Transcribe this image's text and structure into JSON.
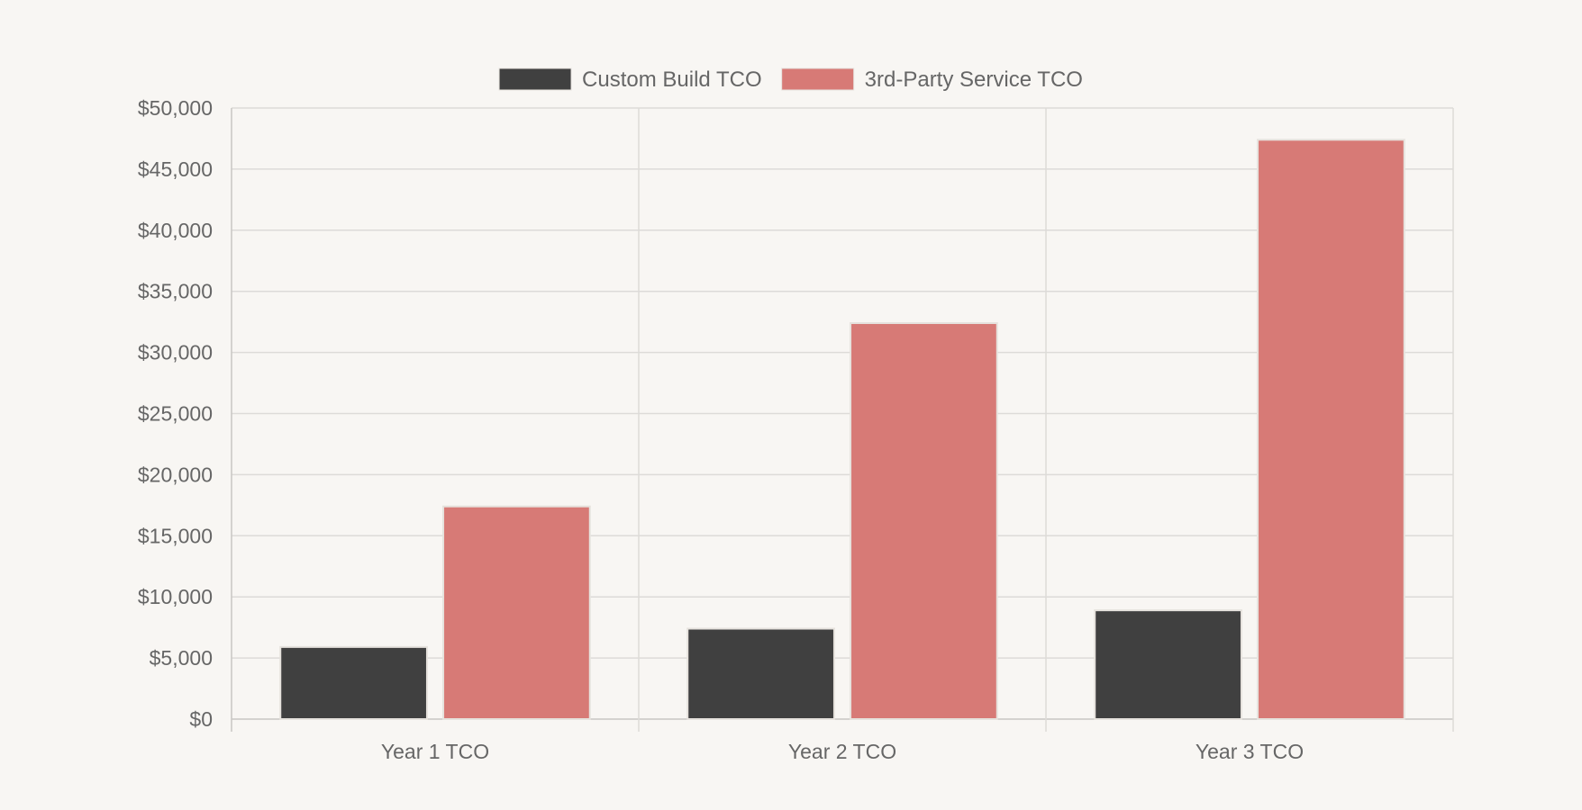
{
  "chart_data": {
    "type": "bar",
    "categories": [
      "Year 1 TCO",
      "Year 2 TCO",
      "Year 3 TCO"
    ],
    "series": [
      {
        "name": "Custom Build TCO",
        "values": [
          5900,
          7400,
          8900
        ],
        "color": "#404040"
      },
      {
        "name": "3rd-Party Service TCO",
        "values": [
          17400,
          32400,
          47400
        ],
        "color": "#d77a76"
      }
    ],
    "ylim": [
      0,
      50000
    ],
    "y_ticks": [
      0,
      5000,
      10000,
      15000,
      20000,
      25000,
      30000,
      35000,
      40000,
      45000,
      50000
    ],
    "y_tick_labels": [
      "$0",
      "$5,000",
      "$10,000",
      "$15,000",
      "$20,000",
      "$25,000",
      "$30,000",
      "$35,000",
      "$40,000",
      "$45,000",
      "$50,000"
    ],
    "grid": true,
    "legend_position": "top-center",
    "colors": {
      "background": "#f8f6f3",
      "grid": "#dddbd8",
      "axis": "#c8c6c3",
      "text": "#666666",
      "bar_border": "#e6e2dd"
    }
  }
}
